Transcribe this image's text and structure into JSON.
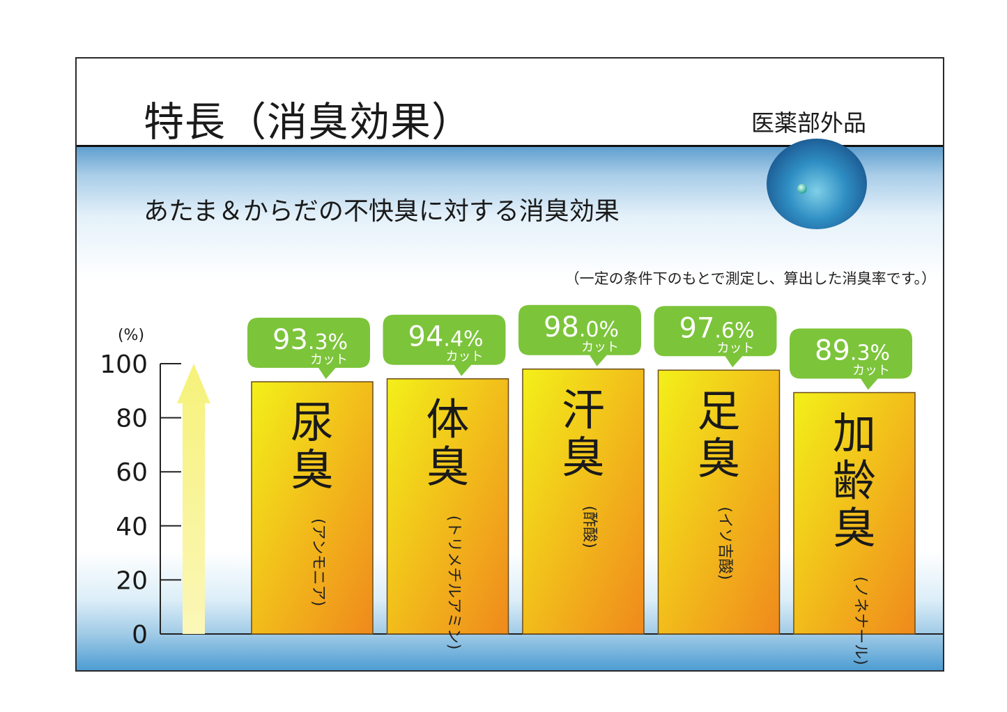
{
  "title": "特長（消臭効果）",
  "badge": "医薬部外品",
  "subtitle": "あたま＆からだの不快臭に対する消臭効果",
  "note": "（一定の条件下のもとで測定し、算出した消臭率です。）",
  "chart_data": {
    "type": "bar",
    "ylabel": "(%)",
    "ylim": [
      0,
      100
    ],
    "yticks": [
      "0",
      "20",
      "40",
      "60",
      "80",
      "100"
    ],
    "categories": [
      {
        "name": "尿臭",
        "sub": "(アンモニア)",
        "value": 93.3,
        "int": "93",
        "dec": ".3%",
        "cut": "カット"
      },
      {
        "name": "体臭",
        "sub": "(トリメチルアミン)",
        "value": 94.4,
        "int": "94",
        "dec": ".4%",
        "cut": "カット"
      },
      {
        "name": "汗臭",
        "sub": "(酢酸)",
        "value": 98.0,
        "int": "98",
        "dec": ".0%",
        "cut": "カット"
      },
      {
        "name": "足臭",
        "sub": "(イソ吉酸)",
        "value": 97.6,
        "int": "97",
        "dec": ".6%",
        "cut": "カット"
      },
      {
        "name": "加齢臭",
        "sub": "(ノネナール)",
        "value": 89.3,
        "int": "89",
        "dec": ".3%",
        "cut": "カット"
      }
    ],
    "colors": {
      "bar_top": "#f3f01a",
      "bar_bottom": "#f0891c",
      "callout": "#7cc43a",
      "arrow": "#f6f27a"
    }
  }
}
